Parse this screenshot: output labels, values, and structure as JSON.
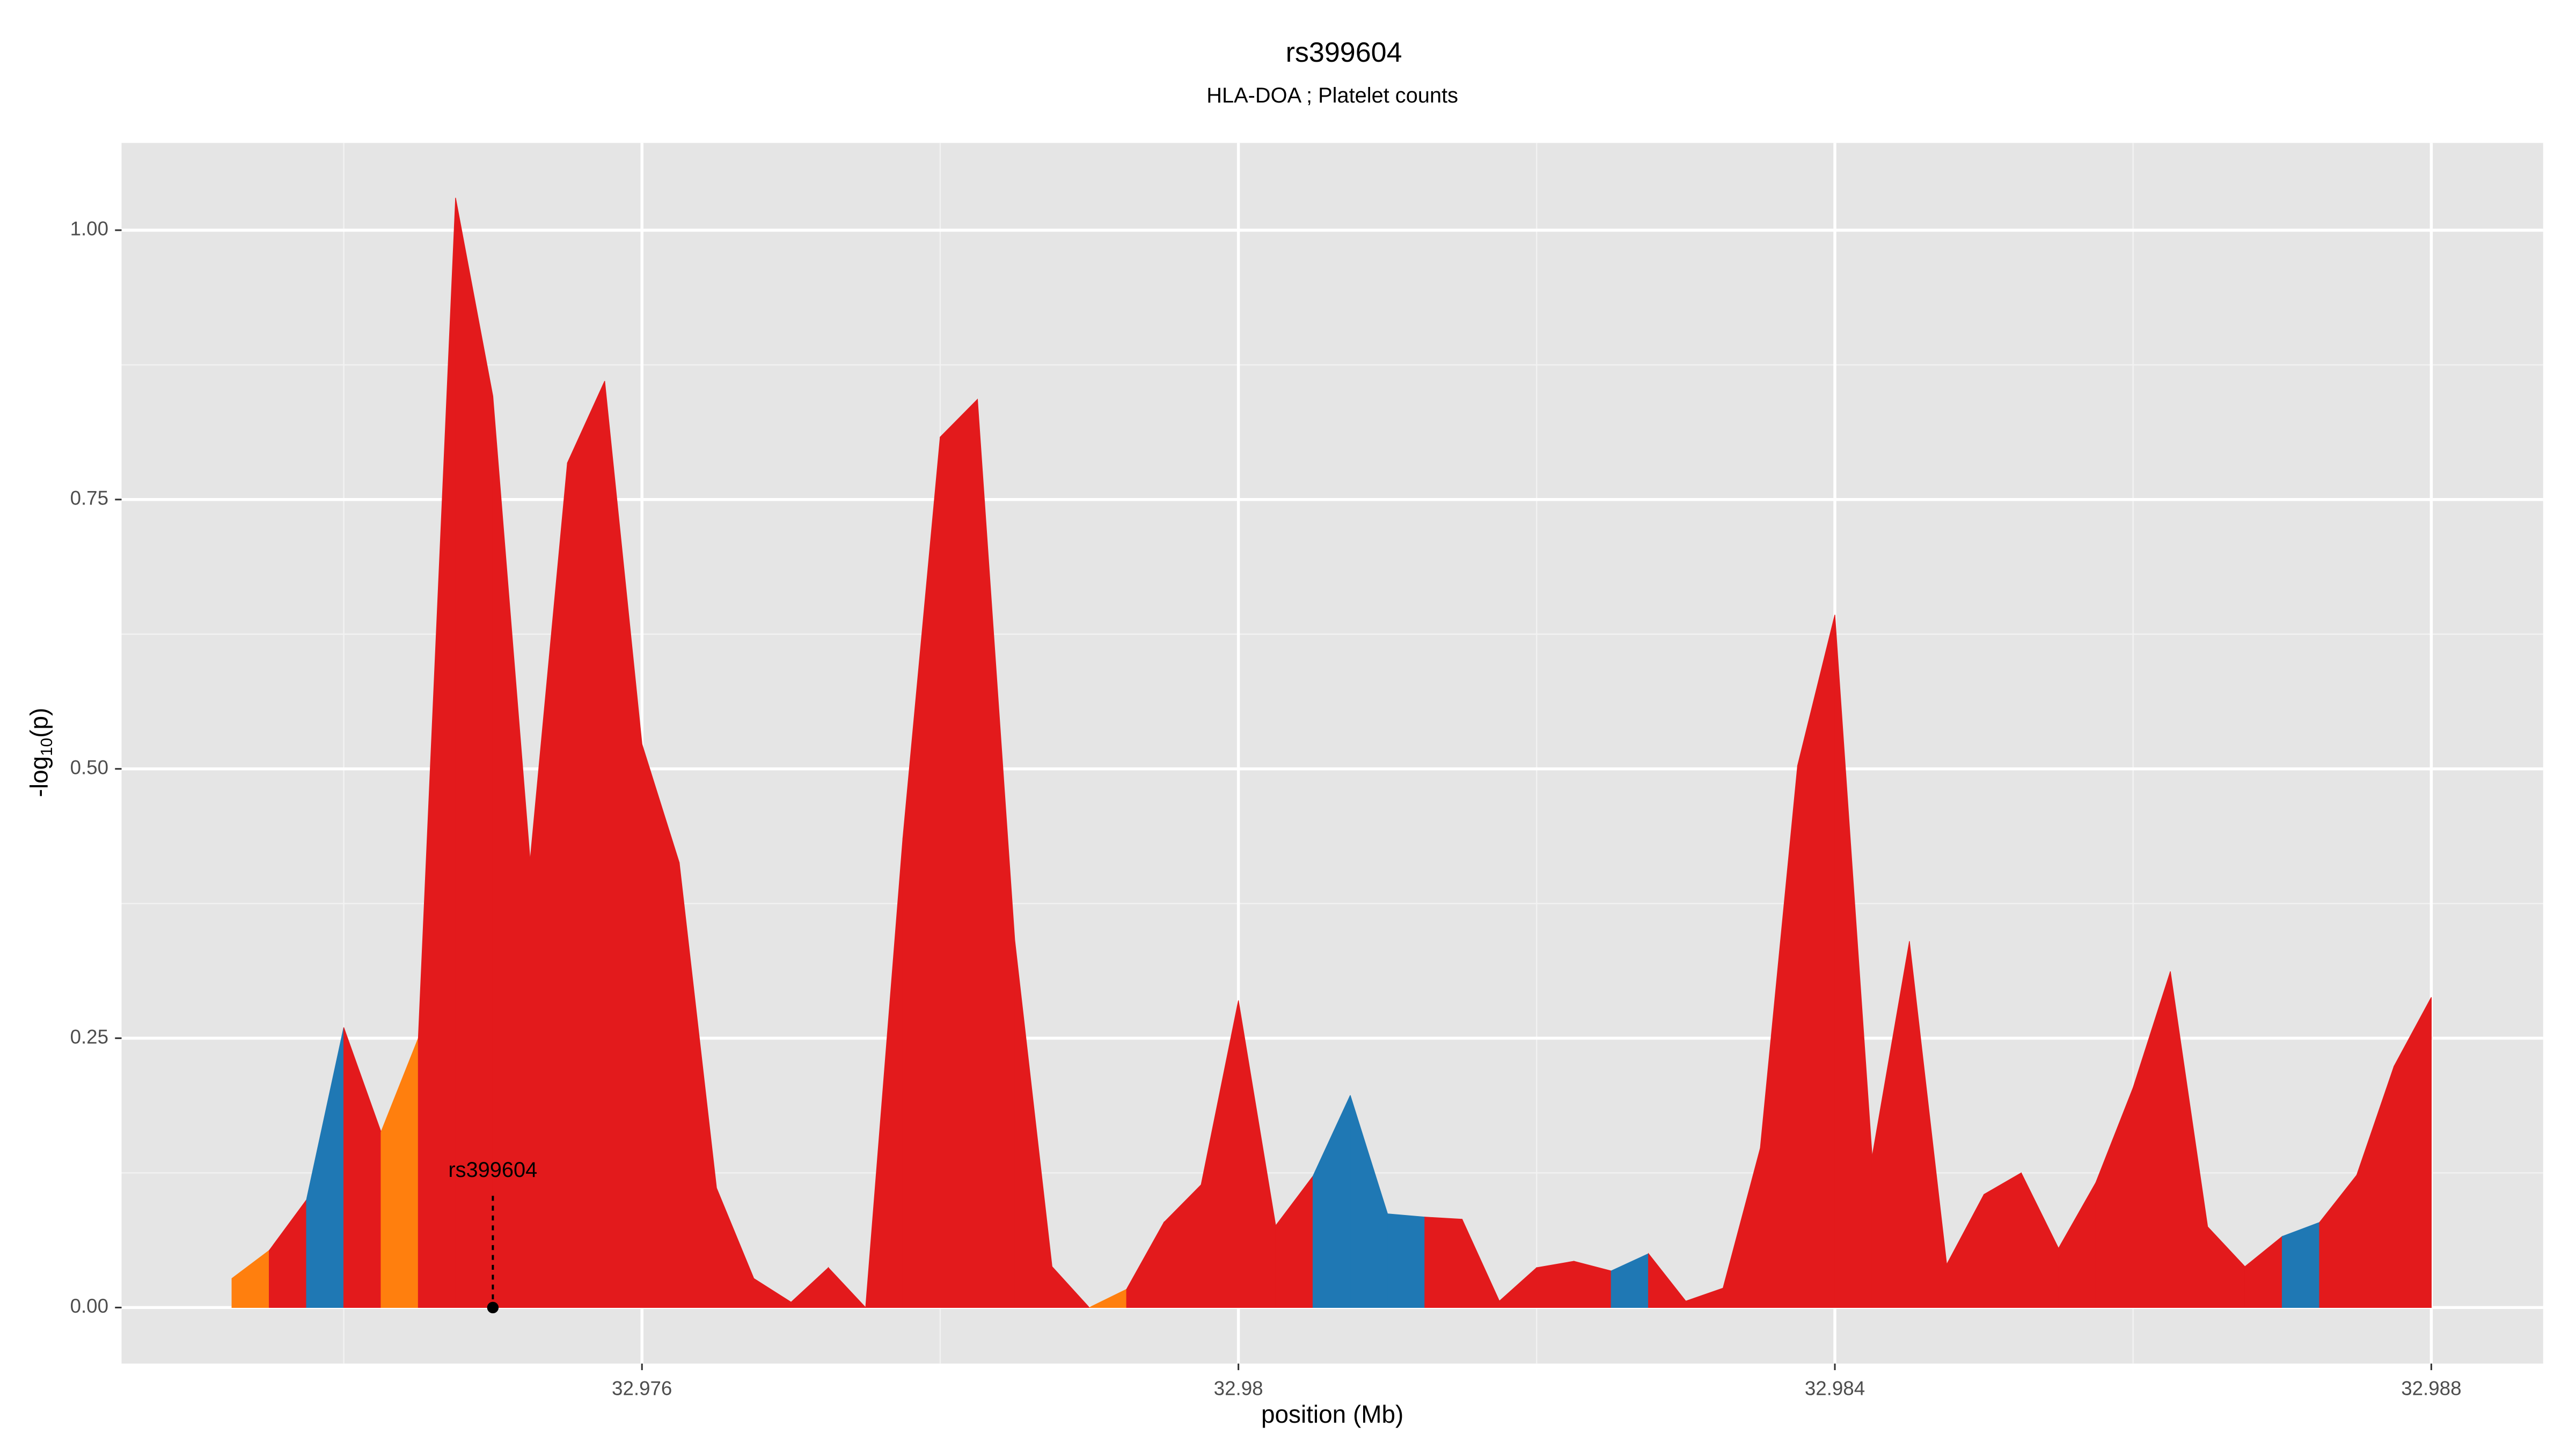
{
  "chart_data": {
    "type": "area",
    "title": "rs399604",
    "subtitle": "HLA-DOA ; Platelet counts",
    "xlabel": "position (Mb)",
    "ylabel": {
      "main": "-log",
      "sub": "10",
      "end": "(p)"
    },
    "x": [
      32.97325,
      32.9735,
      32.97375,
      32.974,
      32.97425,
      32.9745,
      32.97475,
      32.975,
      32.97525,
      32.9755,
      32.97575,
      32.976,
      32.97625,
      32.9765,
      32.97675,
      32.977,
      32.97725,
      32.9775,
      32.97775,
      32.978,
      32.97825,
      32.9785,
      32.97875,
      32.979,
      32.97925,
      32.9795,
      32.97975,
      32.98,
      32.98025,
      32.9805,
      32.98075,
      32.981,
      32.98125,
      32.9815,
      32.98175,
      32.982,
      32.98225,
      32.9825,
      32.98275,
      32.983,
      32.98325,
      32.9835,
      32.98375,
      32.984,
      32.98425,
      32.9845,
      32.98475,
      32.985,
      32.98525,
      32.9855,
      32.98575,
      32.986,
      32.98625,
      32.9865,
      32.98675,
      32.987,
      32.98725,
      32.9875,
      32.98775,
      32.988
    ],
    "values": [
      0.027,
      0.053,
      0.1,
      0.26,
      0.163,
      0.25,
      1.03,
      0.846,
      0.415,
      0.784,
      0.86,
      0.523,
      0.413,
      0.111,
      0.027,
      0.005,
      0.037,
      0.0,
      0.436,
      0.808,
      0.843,
      0.341,
      0.038,
      0.0,
      0.017,
      0.079,
      0.114,
      0.285,
      0.076,
      0.122,
      0.197,
      0.087,
      0.084,
      0.082,
      0.006,
      0.037,
      0.043,
      0.034,
      0.05,
      0.006,
      0.018,
      0.148,
      0.503,
      0.643,
      0.14,
      0.34,
      0.04,
      0.105,
      0.125,
      0.055,
      0.116,
      0.204,
      0.312,
      0.075,
      0.038,
      0.066,
      0.079,
      0.123,
      0.224,
      0.288
    ],
    "colors": [
      "#ff7f0e",
      "#e31a1c",
      "#1f78b4",
      "#e31a1c",
      "#ff7f0e",
      "#e31a1c",
      "#e31a1c",
      "#e31a1c",
      "#e31a1c",
      "#e31a1c",
      "#e31a1c",
      "#e31a1c",
      "#e31a1c",
      "#e31a1c",
      "#e31a1c",
      "#e31a1c",
      "#e31a1c",
      "#e31a1c",
      "#e31a1c",
      "#e31a1c",
      "#e31a1c",
      "#e31a1c",
      "#e31a1c",
      "#ff7f0e",
      "#e31a1c",
      "#e31a1c",
      "#e31a1c",
      "#e31a1c",
      "#e31a1c",
      "#1f78b4",
      "#1f78b4",
      "#1f78b4",
      "#e31a1c",
      "#e31a1c",
      "#e31a1c",
      "#e31a1c",
      "#e31a1c",
      "#1f78b4",
      "#e31a1c",
      "#e31a1c",
      "#e31a1c",
      "#e31a1c",
      "#e31a1c",
      "#e31a1c",
      "#e31a1c",
      "#e31a1c",
      "#e31a1c",
      "#e31a1c",
      "#e31a1c",
      "#e31a1c",
      "#e31a1c",
      "#e31a1c",
      "#e31a1c",
      "#e31a1c",
      "#e31a1c",
      "#1f78b4",
      "#e31a1c",
      "#e31a1c",
      "#e31a1c",
      "#e31a1c"
    ],
    "annotation": {
      "text": "rs399604",
      "x": 32.975,
      "y": 0
    },
    "xlim": [
      32.97251,
      32.98875
    ],
    "ylim": [
      -0.052,
      1.081
    ],
    "xticks": [
      32.976,
      32.98,
      32.984,
      32.988
    ],
    "xminor": [
      32.974,
      32.978,
      32.982,
      32.986
    ],
    "yticks": [
      {
        "value": 0,
        "label": "0.00"
      },
      {
        "value": 0.25,
        "label": "0.25"
      },
      {
        "value": 0.5,
        "label": "0.50"
      },
      {
        "value": 0.75,
        "label": "0.75"
      },
      {
        "value": 1,
        "label": "1.00"
      }
    ],
    "yminor": [
      0.125,
      0.375,
      0.625,
      0.875
    ],
    "grid": true
  }
}
